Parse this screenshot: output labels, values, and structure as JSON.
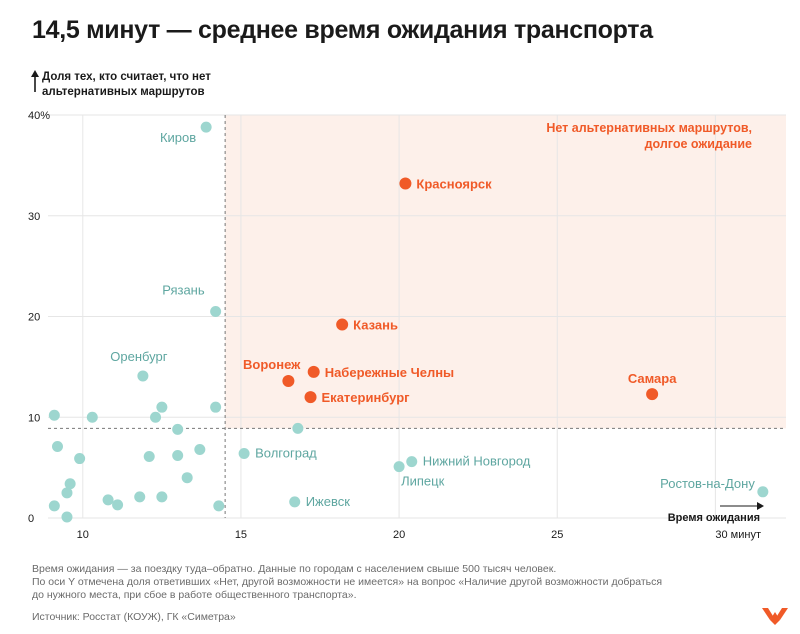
{
  "title": "14,5 минут — среднее время ожидания транспорта",
  "notes": [
    "Время ожидания — за поездку туда–обратно. Данные по городам с населением свыше 500 тысяч человек.",
    "По оси Y отмечена доля ответивших «Нет, другой возможности не имеется» на вопрос «Наличие другой возможности добраться",
    "до нужного места, при сбое в работе общественного транспорта»."
  ],
  "source": "Источник: Росстат (КОУЖ), ГК «Симетра»",
  "colors": {
    "highlight": "#f05a28",
    "normal": "#9dd6cf",
    "normal_label": "#5ea6a0",
    "zone": "#fdf0ea",
    "grid": "#e6e6e6"
  },
  "chart_data": {
    "type": "scatter",
    "title": "14,5 минут — среднее время ожидания транспорта",
    "ylabel": "Доля тех, кто считает, что нет альтернативных маршрутов",
    "xlabel": "Время ожидания",
    "x_tick_labels": [
      "10",
      "15",
      "20",
      "25",
      "30 минут"
    ],
    "x_ticks": [
      10,
      15,
      20,
      25,
      30
    ],
    "y_tick_labels": [
      "0",
      "10",
      "20",
      "30",
      "40%"
    ],
    "y_ticks": [
      0,
      10,
      20,
      30,
      40
    ],
    "xlim": [
      8.9,
      31.6
    ],
    "ylim": [
      0,
      40
    ],
    "grid": true,
    "thresholds": {
      "x": 14.5,
      "y": 8.9
    },
    "zone_label": [
      "Нет альтернативных маршрутов,",
      "долгое ожидание"
    ],
    "highlighted": [
      {
        "label": "Красноярск",
        "x": 20.2,
        "y": 33.2
      },
      {
        "label": "Казань",
        "x": 18.2,
        "y": 19.2
      },
      {
        "label": "Воронеж",
        "x": 16.5,
        "y": 13.6
      },
      {
        "label": "Набережные Челны",
        "x": 17.3,
        "y": 14.5
      },
      {
        "label": "Екатеринбург",
        "x": 17.2,
        "y": 12.0
      },
      {
        "label": "Самара",
        "x": 28.0,
        "y": 12.3
      }
    ],
    "labeled": [
      {
        "label": "Киров",
        "x": 13.9,
        "y": 38.8
      },
      {
        "label": "Рязань",
        "x": 14.2,
        "y": 20.5
      },
      {
        "label": "Оренбург",
        "x": 11.9,
        "y": 14.1
      },
      {
        "label": "Волгоград",
        "x": 15.1,
        "y": 6.4
      },
      {
        "label": "Нижний Новгород",
        "x": 20.4,
        "y": 5.6
      },
      {
        "label": "Липецк",
        "x": 20.0,
        "y": 5.1
      },
      {
        "label": "Ижевск",
        "x": 16.7,
        "y": 1.6
      },
      {
        "label": "Ростов-на-Дону",
        "x": 31.5,
        "y": 2.6
      }
    ],
    "unlabeled": [
      {
        "x": 9.1,
        "y": 10.2
      },
      {
        "x": 10.3,
        "y": 10.0
      },
      {
        "x": 12.3,
        "y": 10.0
      },
      {
        "x": 12.5,
        "y": 11.0
      },
      {
        "x": 14.2,
        "y": 11.0
      },
      {
        "x": 9.2,
        "y": 7.1
      },
      {
        "x": 13.0,
        "y": 8.8
      },
      {
        "x": 9.9,
        "y": 5.9
      },
      {
        "x": 12.1,
        "y": 6.1
      },
      {
        "x": 13.0,
        "y": 6.2
      },
      {
        "x": 13.7,
        "y": 6.8
      },
      {
        "x": 16.8,
        "y": 8.9
      },
      {
        "x": 13.3,
        "y": 4.0
      },
      {
        "x": 9.6,
        "y": 3.4
      },
      {
        "x": 9.5,
        "y": 2.5
      },
      {
        "x": 10.8,
        "y": 1.8
      },
      {
        "x": 11.8,
        "y": 2.1
      },
      {
        "x": 12.5,
        "y": 2.1
      },
      {
        "x": 9.1,
        "y": 1.2
      },
      {
        "x": 11.1,
        "y": 1.3
      },
      {
        "x": 9.5,
        "y": 0.1
      },
      {
        "x": 14.3,
        "y": 1.2
      }
    ]
  }
}
